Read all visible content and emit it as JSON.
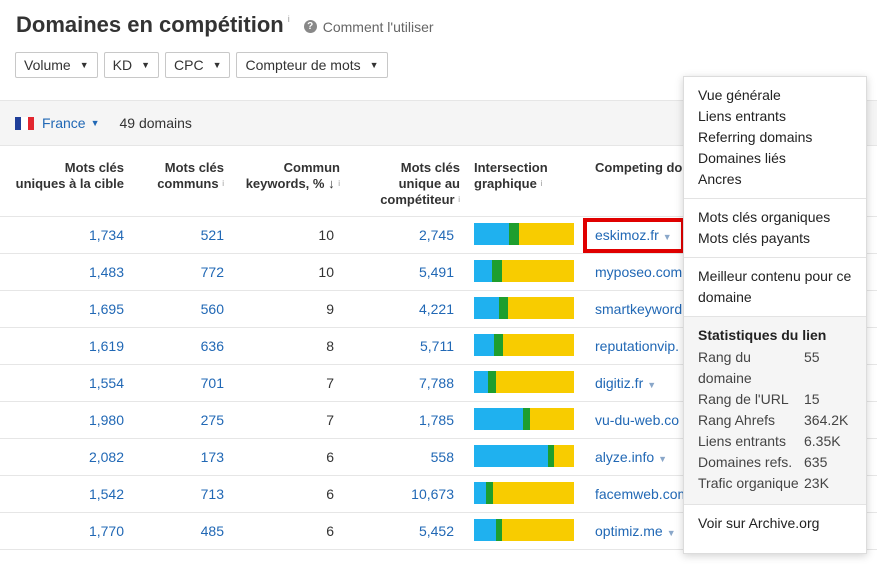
{
  "header": {
    "title": "Domaines en compétition",
    "title_info": "i",
    "help_icon": "?",
    "help_label": "Comment l'utiliser"
  },
  "filters": [
    "Volume",
    "KD",
    "CPC",
    "Compteur de mots"
  ],
  "toolbar": {
    "country": "France",
    "domain_count": "49 domains"
  },
  "columns": {
    "c1": [
      "Mots clés",
      "uniques à la cible"
    ],
    "c2": [
      "Mots clés",
      "communs"
    ],
    "c3": [
      "Commun",
      "keywords, %"
    ],
    "c3_sort": "↓",
    "c4": [
      "Mots clés",
      "unique au",
      "compétiteur"
    ],
    "c5": [
      "Intersection",
      "graphique"
    ],
    "c6": "Competing do",
    "info": "i"
  },
  "colors": {
    "blue": "#1fb1ef",
    "green": "#1e9e2e",
    "yellow": "#f8cc00",
    "link": "#2168b5",
    "highlight": "#e00000"
  },
  "rows": [
    {
      "unique_target": "1,734",
      "common": "521",
      "pct": "10",
      "unique_comp": "2,745",
      "bar": [
        0.35,
        0.1,
        0.55
      ],
      "domain": "eskimoz.fr",
      "caret": true,
      "highlight": true
    },
    {
      "unique_target": "1,483",
      "common": "772",
      "pct": "10",
      "unique_comp": "5,491",
      "bar": [
        0.18,
        0.1,
        0.72
      ],
      "domain": "myposeo.com",
      "caret": false
    },
    {
      "unique_target": "1,695",
      "common": "560",
      "pct": "9",
      "unique_comp": "4,221",
      "bar": [
        0.25,
        0.09,
        0.66
      ],
      "domain": "smartkeyword",
      "caret": false
    },
    {
      "unique_target": "1,619",
      "common": "636",
      "pct": "8",
      "unique_comp": "5,711",
      "bar": [
        0.2,
        0.09,
        0.71
      ],
      "domain": "reputationvip.",
      "caret": false
    },
    {
      "unique_target": "1,554",
      "common": "701",
      "pct": "7",
      "unique_comp": "7,788",
      "bar": [
        0.14,
        0.08,
        0.78
      ],
      "domain": "digitiz.fr",
      "caret": true
    },
    {
      "unique_target": "1,980",
      "common": "275",
      "pct": "7",
      "unique_comp": "1,785",
      "bar": [
        0.49,
        0.07,
        0.44
      ],
      "domain": "vu-du-web.co",
      "caret": false
    },
    {
      "unique_target": "2,082",
      "common": "173",
      "pct": "6",
      "unique_comp": "558",
      "bar": [
        0.74,
        0.06,
        0.2
      ],
      "domain": "alyze.info",
      "caret": true
    },
    {
      "unique_target": "1,542",
      "common": "713",
      "pct": "6",
      "unique_comp": "10,673",
      "bar": [
        0.12,
        0.07,
        0.81
      ],
      "domain": "facemweb.com",
      "caret": false
    },
    {
      "unique_target": "1,770",
      "common": "485",
      "pct": "6",
      "unique_comp": "5,452",
      "bar": [
        0.22,
        0.06,
        0.72
      ],
      "domain": "optimiz.me",
      "caret": true
    }
  ],
  "dropdown": {
    "section1": [
      "Vue générale",
      "Liens entrants",
      "Referring domains",
      "Domaines liés",
      "Ancres"
    ],
    "section2": [
      "Mots clés organiques",
      "Mots clés payants"
    ],
    "section3": [
      "Meilleur contenu pour ce",
      "domaine"
    ],
    "stats_title": "Statistiques du lien",
    "stats": [
      {
        "label": "Rang du",
        "label2": "domaine",
        "value": "55"
      },
      {
        "label": "Rang de l'URL",
        "value": "15"
      },
      {
        "label": "Rang Ahrefs",
        "value": "364.2K"
      },
      {
        "label": "Liens entrants",
        "value": "6.35K"
      },
      {
        "label": "Domaines refs.",
        "value": "635"
      },
      {
        "label": "Trafic organique",
        "value": "23K"
      }
    ],
    "archive": "Voir sur Archive.org"
  }
}
